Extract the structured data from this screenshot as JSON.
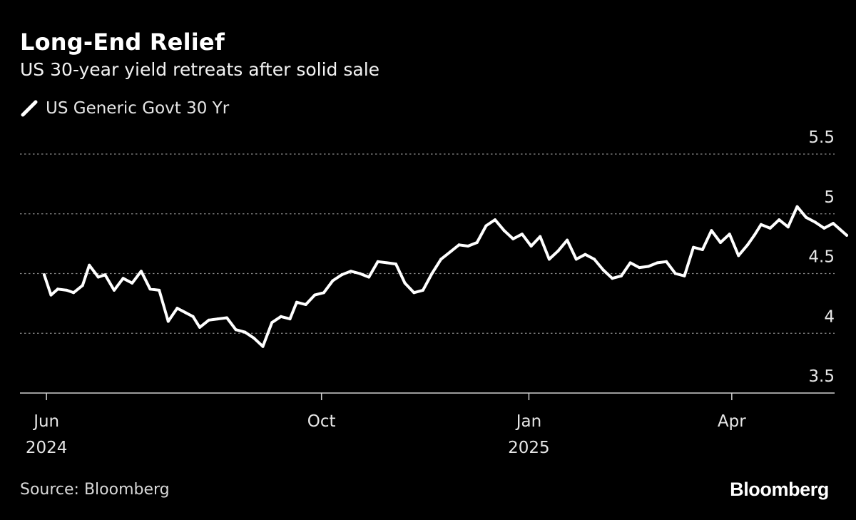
{
  "title": "Long-End Relief",
  "subtitle": "US 30-year yield retreats after solid sale",
  "source": "Source: Bloomberg",
  "brand": "Bloomberg",
  "colors": {
    "background": "#000000",
    "line": "#ffffff",
    "grid": "#8c8c8c",
    "text": "#e6e6e6"
  },
  "chart_data": {
    "type": "line",
    "title": "Long-End Relief",
    "subtitle": "US 30-year yield retreats after solid sale",
    "xlabel": "",
    "ylabel": "",
    "x_range": [
      "2024-05-31",
      "2025-05-22"
    ],
    "ylim": [
      3.5,
      5.5
    ],
    "y_ticks": [
      "5.5",
      "5",
      "4.5",
      "4",
      "3.5"
    ],
    "y_tick_values": [
      5.5,
      5.0,
      4.5,
      4.0,
      3.5
    ],
    "y_axis_side": "right",
    "grid": "horizontal dotted",
    "legend_position": "top-left",
    "x_ticks": [
      {
        "date": "2024-06-01",
        "label": "Jun",
        "year": "2024"
      },
      {
        "date": "2024-10-01",
        "label": "Oct",
        "year": ""
      },
      {
        "date": "2025-01-01",
        "label": "Jan",
        "year": "2025"
      },
      {
        "date": "2025-04-01",
        "label": "Apr",
        "year": ""
      }
    ],
    "series": [
      {
        "name": "US Generic Govt 30 Yr",
        "x": [
          "2024-05-31",
          "2024-06-03",
          "2024-06-06",
          "2024-06-10",
          "2024-06-13",
          "2024-06-17",
          "2024-06-20",
          "2024-06-24",
          "2024-06-27",
          "2024-07-01",
          "2024-07-05",
          "2024-07-09",
          "2024-07-13",
          "2024-07-17",
          "2024-07-21",
          "2024-07-25",
          "2024-07-29",
          "2024-08-02",
          "2024-08-05",
          "2024-08-08",
          "2024-08-12",
          "2024-08-16",
          "2024-08-20",
          "2024-08-24",
          "2024-08-28",
          "2024-09-01",
          "2024-09-05",
          "2024-09-09",
          "2024-09-13",
          "2024-09-17",
          "2024-09-20",
          "2024-09-24",
          "2024-09-28",
          "2024-10-02",
          "2024-10-06",
          "2024-10-10",
          "2024-10-14",
          "2024-10-18",
          "2024-10-22",
          "2024-10-26",
          "2024-10-30",
          "2024-11-03",
          "2024-11-07",
          "2024-11-11",
          "2024-11-15",
          "2024-11-19",
          "2024-11-23",
          "2024-11-27",
          "2024-12-01",
          "2024-12-05",
          "2024-12-09",
          "2024-12-13",
          "2024-12-17",
          "2024-12-21",
          "2024-12-25",
          "2024-12-29",
          "2025-01-02",
          "2025-01-06",
          "2025-01-10",
          "2025-01-14",
          "2025-01-18",
          "2025-01-22",
          "2025-01-26",
          "2025-01-30",
          "2025-02-03",
          "2025-02-07",
          "2025-02-11",
          "2025-02-15",
          "2025-02-19",
          "2025-02-23",
          "2025-02-27",
          "2025-03-03",
          "2025-03-07",
          "2025-03-11",
          "2025-03-15",
          "2025-03-19",
          "2025-03-23",
          "2025-03-27",
          "2025-03-31",
          "2025-04-04",
          "2025-04-08",
          "2025-04-11",
          "2025-04-14",
          "2025-04-18",
          "2025-04-22",
          "2025-04-26",
          "2025-04-30",
          "2025-05-04",
          "2025-05-08",
          "2025-05-12",
          "2025-05-16",
          "2025-05-19",
          "2025-05-22"
        ],
        "y": [
          4.49,
          4.32,
          4.37,
          4.36,
          4.34,
          4.4,
          4.57,
          4.47,
          4.49,
          4.36,
          4.46,
          4.42,
          4.52,
          4.37,
          4.36,
          4.1,
          4.21,
          4.17,
          4.14,
          4.05,
          4.11,
          4.12,
          4.13,
          4.03,
          4.01,
          3.96,
          3.89,
          4.09,
          4.14,
          4.12,
          4.26,
          4.24,
          4.32,
          4.34,
          4.44,
          4.49,
          4.52,
          4.5,
          4.47,
          4.6,
          4.59,
          4.58,
          4.42,
          4.34,
          4.36,
          4.5,
          4.62,
          4.68,
          4.74,
          4.73,
          4.76,
          4.9,
          4.95,
          4.86,
          4.79,
          4.83,
          4.73,
          4.81,
          4.62,
          4.69,
          4.78,
          4.62,
          4.66,
          4.62,
          4.53,
          4.46,
          4.48,
          4.59,
          4.55,
          4.56,
          4.59,
          4.6,
          4.5,
          4.48,
          4.72,
          4.7,
          4.86,
          4.76,
          4.83,
          4.65,
          4.74,
          4.82,
          4.91,
          4.88,
          4.95,
          4.89,
          5.06,
          4.97,
          4.93,
          4.88,
          4.92,
          4.87,
          4.82
        ]
      }
    ]
  }
}
